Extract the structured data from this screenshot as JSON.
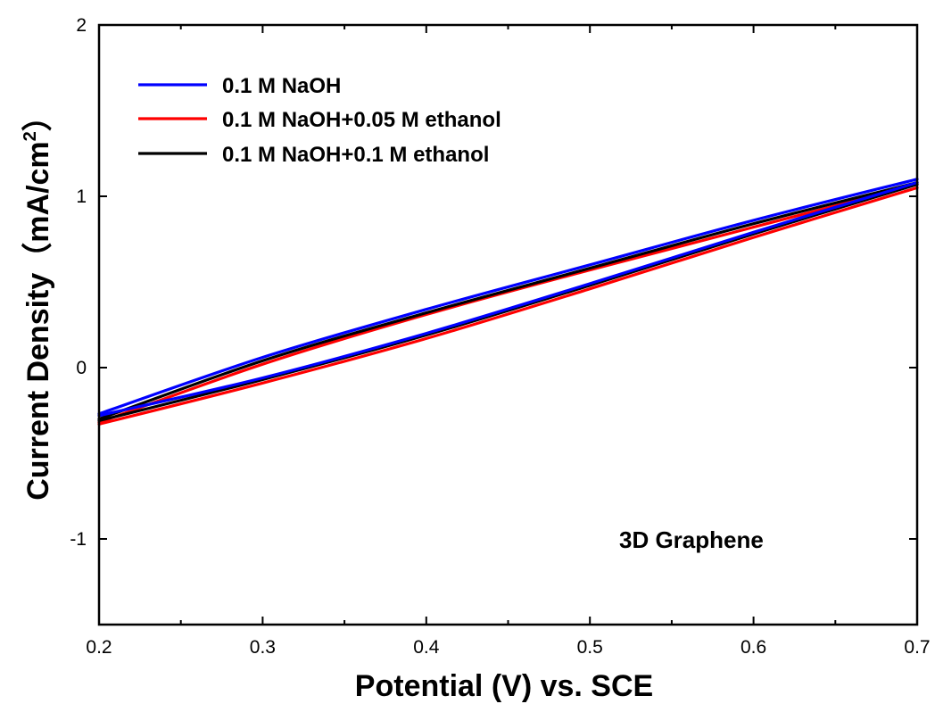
{
  "chart_data": {
    "type": "line",
    "title": "",
    "xlabel": "Potential (V) vs. SCE",
    "ylabel_main": "Current Density（mA/cm",
    "ylabel_sup": "2",
    "ylabel_close": "）",
    "xlim": [
      0.2,
      0.7
    ],
    "ylim": [
      -1.5,
      2.0
    ],
    "x_ticks": [
      0.2,
      0.3,
      0.4,
      0.5,
      0.6,
      0.7
    ],
    "x_tick_labels": [
      "0.2",
      "0.3",
      "0.4",
      "0.5",
      "0.6",
      "0.7"
    ],
    "y_ticks": [
      -1,
      0,
      1,
      2
    ],
    "y_tick_labels": [
      "-1",
      "0",
      "1",
      "2"
    ],
    "grid": false,
    "legend_position": "top-left",
    "annotation": "3D Graphene",
    "series": [
      {
        "name": "0.1 M NaOH",
        "color": "#0000ff",
        "anodic": {
          "x": [
            0.2,
            0.3,
            0.4,
            0.5,
            0.6,
            0.7
          ],
          "y": [
            -0.27,
            0.06,
            0.34,
            0.6,
            0.86,
            1.1
          ]
        },
        "cathodic": {
          "x": [
            0.7,
            0.6,
            0.5,
            0.4,
            0.3,
            0.2
          ],
          "y": [
            1.08,
            0.79,
            0.49,
            0.2,
            -0.06,
            -0.28
          ]
        }
      },
      {
        "name": "0.1 M NaOH+0.05 M ethanol",
        "color": "#ff0000",
        "anodic": {
          "x": [
            0.2,
            0.3,
            0.4,
            0.5,
            0.6,
            0.7
          ],
          "y": [
            -0.32,
            0.02,
            0.31,
            0.57,
            0.82,
            1.07
          ]
        },
        "cathodic": {
          "x": [
            0.7,
            0.6,
            0.5,
            0.4,
            0.3,
            0.2
          ],
          "y": [
            1.05,
            0.76,
            0.46,
            0.17,
            -0.09,
            -0.33
          ]
        }
      },
      {
        "name": "0.1 M NaOH+0.1 M ethanol",
        "color": "#000000",
        "anodic": {
          "x": [
            0.2,
            0.3,
            0.4,
            0.5,
            0.6,
            0.7
          ],
          "y": [
            -0.3,
            0.04,
            0.32,
            0.58,
            0.84,
            1.08
          ]
        },
        "cathodic": {
          "x": [
            0.7,
            0.6,
            0.5,
            0.4,
            0.3,
            0.2
          ],
          "y": [
            1.07,
            0.78,
            0.48,
            0.19,
            -0.07,
            -0.31
          ]
        }
      }
    ]
  }
}
